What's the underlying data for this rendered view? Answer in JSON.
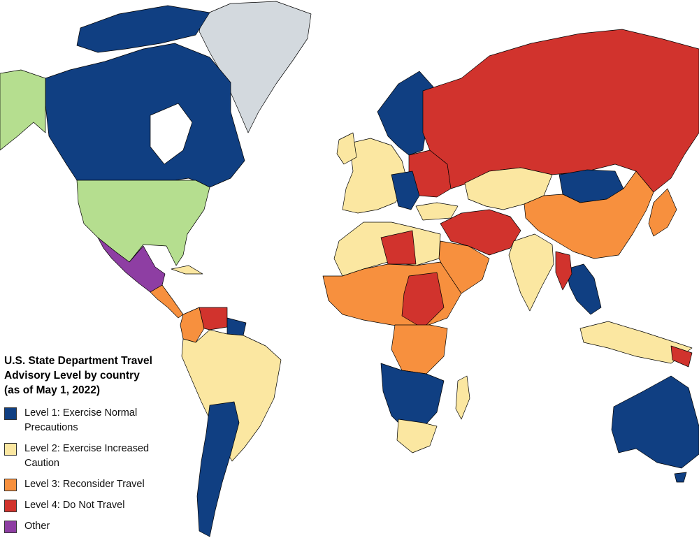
{
  "map": {
    "title": "U.S. State Department Travel Advisory Level by country (as of May 1, 2022)",
    "colors": {
      "level1": "#103f82",
      "level2": "#fbe7a1",
      "level3": "#f7903e",
      "level4": "#d1332d",
      "other": "#8e3ea3",
      "usa": "#b5de8f",
      "greenland": "#d3d9de"
    }
  },
  "legend": {
    "items": [
      {
        "label": "Level 1: Exercise Normal Precautions",
        "color": "#103f82"
      },
      {
        "label": "Level 2: Exercise Increased Caution",
        "color": "#fbe7a1"
      },
      {
        "label": "Level 3: Reconsider Travel",
        "color": "#f7903e"
      },
      {
        "label": "Level 4: Do Not Travel",
        "color": "#d1332d"
      },
      {
        "label": "Other",
        "color": "#8e3ea3"
      }
    ]
  }
}
